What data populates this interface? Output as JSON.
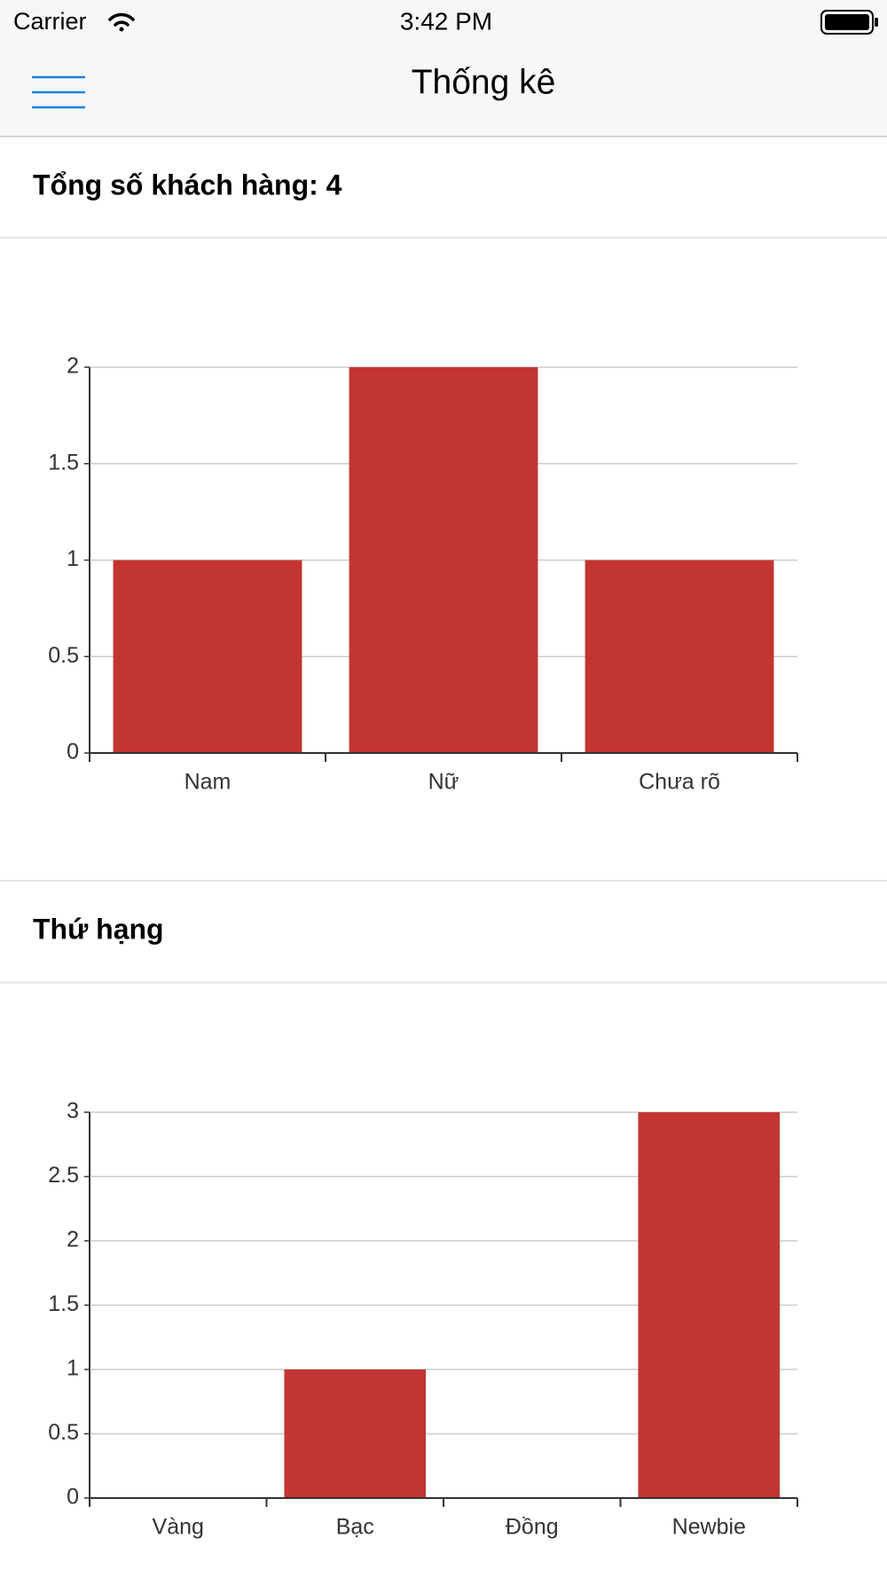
{
  "status_bar": {
    "carrier": "Carrier",
    "time": "3:42 PM"
  },
  "nav": {
    "title": "Thống kê"
  },
  "sections": [
    {
      "heading": "Tổng số khách hàng: 4"
    },
    {
      "heading": "Thứ hạng"
    }
  ],
  "chart_data": [
    {
      "type": "bar",
      "categories": [
        "Nam",
        "Nữ",
        "Chưa rõ"
      ],
      "values": [
        1,
        2,
        1
      ],
      "color": "#c23531",
      "ylim": [
        0,
        2
      ],
      "yticks": [
        0,
        0.5,
        1,
        1.5,
        2
      ],
      "grid": true
    },
    {
      "type": "bar",
      "categories": [
        "Vàng",
        "Bạc",
        "Đồng",
        "Newbie"
      ],
      "values": [
        0,
        1,
        0,
        3
      ],
      "color": "#c23531",
      "ylim": [
        0,
        3
      ],
      "yticks": [
        0,
        0.5,
        1,
        1.5,
        2,
        2.5,
        3
      ],
      "grid": true
    }
  ]
}
